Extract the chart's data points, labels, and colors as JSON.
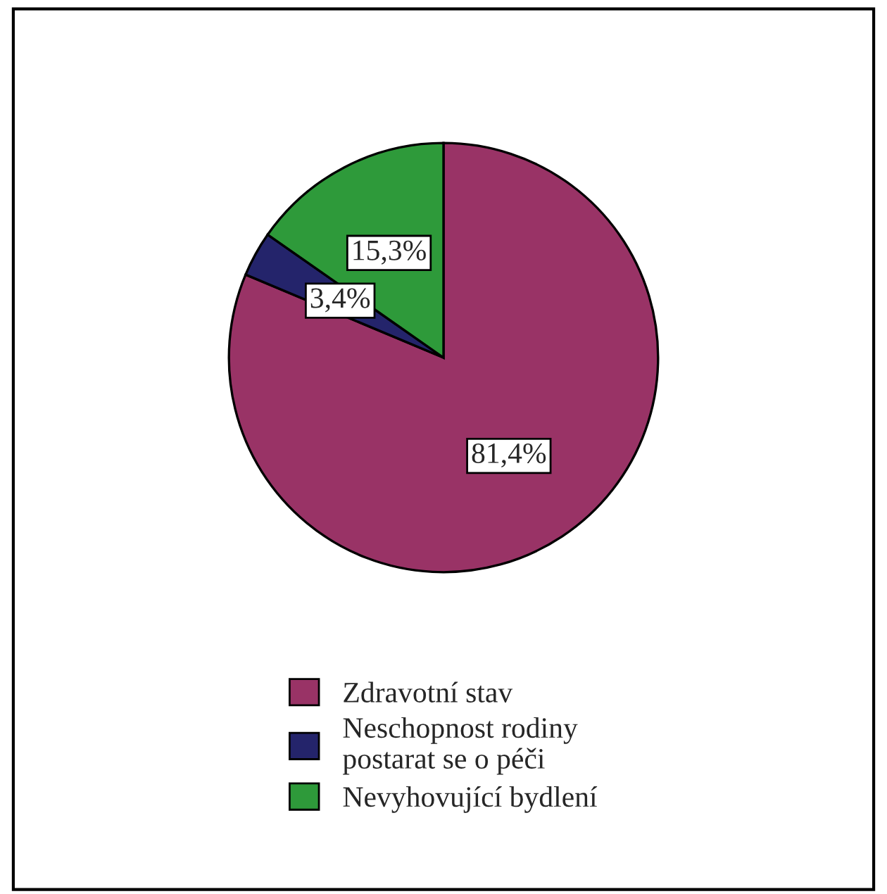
{
  "chart_data": {
    "type": "pie",
    "categories": [
      "Zdravotní stav",
      "Neschopnost rodiny\npostarat se o péči",
      "Nevyhovující bydlení"
    ],
    "values": [
      81.4,
      3.4,
      15.3
    ],
    "colors": [
      "#993366",
      "#24246b",
      "#2e9a3a"
    ],
    "value_labels": [
      "81,4%",
      "3,4%",
      "15,3%"
    ],
    "legend": "bottom"
  }
}
